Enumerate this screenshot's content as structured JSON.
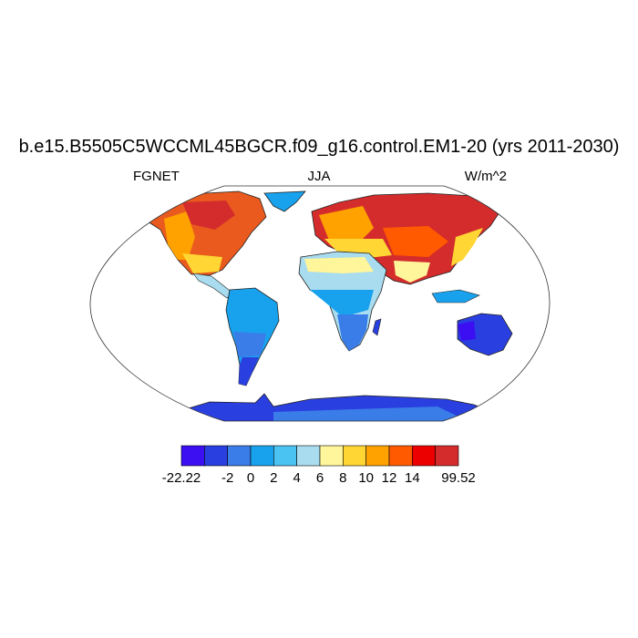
{
  "title": "b.e15.B5505C5WCCML45BGCR.f09_g16.control.EM1-20 (yrs 2011-2030)",
  "left_label": "FGNET",
  "center_label": "JJA",
  "right_label": "W/m^2",
  "colorbar": {
    "colors": [
      "#3b0ff2",
      "#2a3fe0",
      "#3a7ce8",
      "#18a2ee",
      "#4bc3f2",
      "#a9dcef",
      "#fff59a",
      "#ffd634",
      "#ffa200",
      "#ff5a00",
      "#ec0000",
      "#d42c2c"
    ],
    "labels": [
      "-22.22",
      "",
      "-2",
      "0",
      "2",
      "4",
      "6",
      "8",
      "10",
      "12",
      "14",
      "",
      "99.52"
    ]
  }
}
